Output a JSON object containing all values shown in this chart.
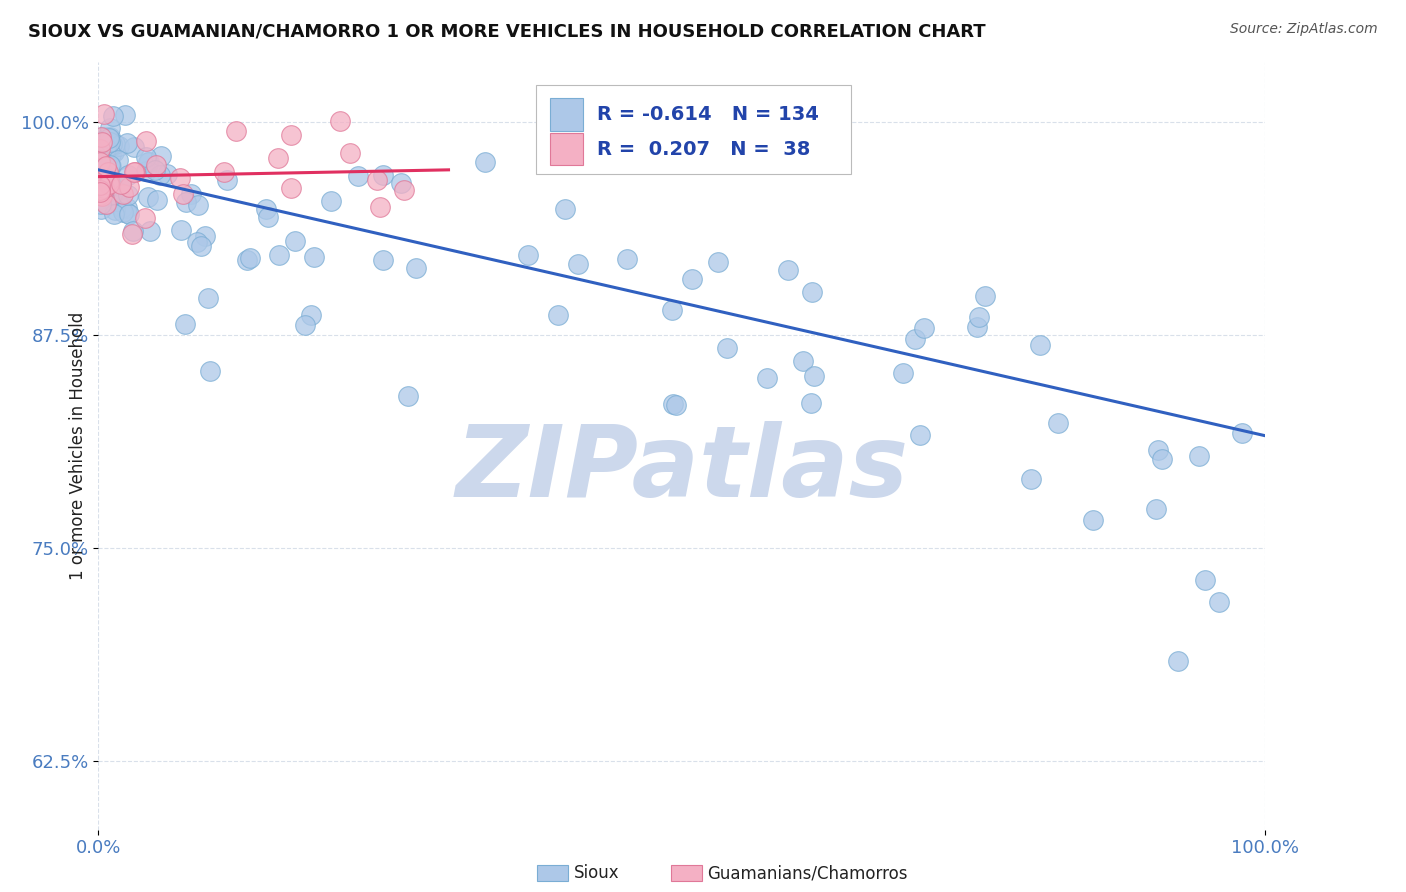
{
  "title": "SIOUX VS GUAMANIAN/CHAMORRO 1 OR MORE VEHICLES IN HOUSEHOLD CORRELATION CHART",
  "source": "Source: ZipAtlas.com",
  "ylabel": "1 or more Vehicles in Household",
  "yticks": [
    0.625,
    0.75,
    0.875,
    1.0
  ],
  "ytick_labels": [
    "62.5%",
    "75.0%",
    "87.5%",
    "100.0%"
  ],
  "xtick_labels": [
    "0.0%",
    "100.0%"
  ],
  "xlim": [
    0.0,
    1.0
  ],
  "ylim": [
    0.585,
    1.035
  ],
  "legend_R_blue": "-0.614",
  "legend_N_blue": "134",
  "legend_R_pink": "0.207",
  "legend_N_pink": "38",
  "blue_color": "#adc8e8",
  "blue_edge": "#7aadd4",
  "pink_color": "#f4b0c4",
  "pink_edge": "#e07898",
  "blue_line_color": "#3060c0",
  "pink_line_color": "#e03060",
  "watermark_color": "#ccd8ec",
  "title_color": "#111111",
  "source_color": "#555555",
  "tick_color": "#4a7cc0",
  "ylabel_color": "#222222",
  "grid_color": "#d5dde8",
  "blue_line_start_y": 0.972,
  "blue_line_end_y": 0.816,
  "pink_line_start_y": 0.968,
  "pink_line_end_x": 0.3,
  "pink_line_end_y": 0.972
}
